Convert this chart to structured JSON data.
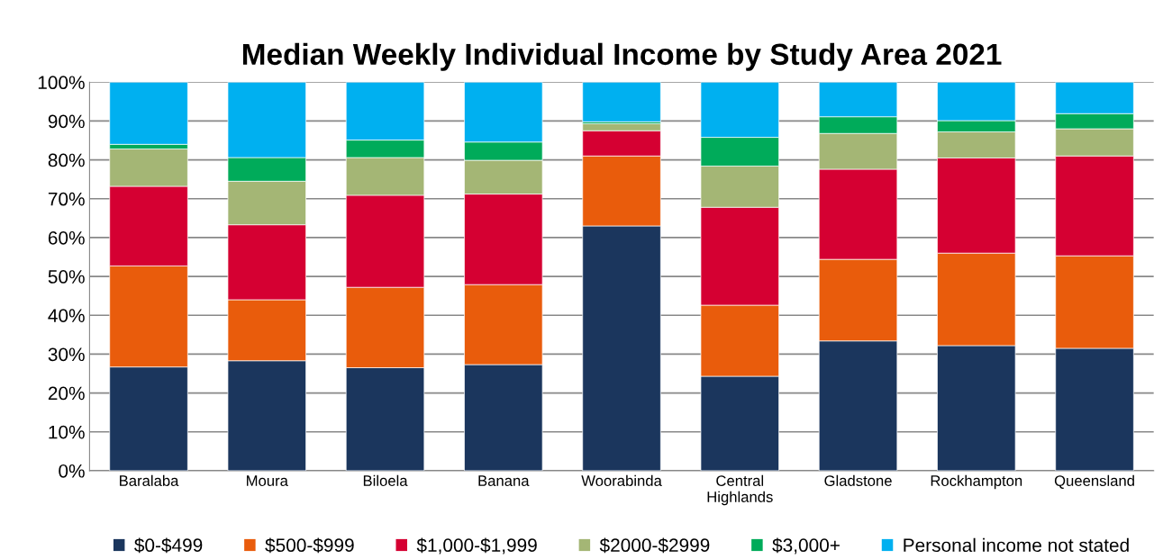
{
  "chart_data": {
    "type": "bar",
    "title": "Median Weekly Individual Income by Study Area 2021",
    "stacked": true,
    "categories": [
      "Baralaba",
      "Moura",
      "Biloela",
      "Banana",
      "Woorabinda",
      "Central\nHighlands",
      "Gladstone",
      "Rockhampton",
      "Queensland"
    ],
    "series": [
      {
        "name": "$0-$499",
        "color": "#1b365d",
        "values": [
          26.7,
          28.3,
          26.5,
          27.3,
          63.0,
          24.3,
          33.4,
          32.2,
          31.5
        ]
      },
      {
        "name": "$500-$999",
        "color": "#e95c0c",
        "values": [
          26.0,
          15.7,
          20.7,
          20.6,
          18.0,
          18.3,
          21.0,
          23.8,
          23.8
        ]
      },
      {
        "name": "$1,000-$1,999",
        "color": "#d50032",
        "values": [
          20.5,
          19.3,
          23.7,
          23.3,
          6.5,
          25.2,
          23.2,
          24.5,
          25.7
        ]
      },
      {
        "name": "$2000-$2999",
        "color": "#a4b675",
        "values": [
          9.6,
          11.2,
          9.7,
          8.7,
          1.8,
          10.6,
          9.2,
          6.7,
          7.0
        ]
      },
      {
        "name": "$3,000+",
        "color": "#00ab5a",
        "values": [
          1.2,
          6.1,
          4.5,
          4.7,
          0.5,
          7.4,
          4.3,
          2.9,
          3.9
        ]
      },
      {
        "name": "Personal income not stated",
        "color": "#00b0f0",
        "values": [
          16.0,
          19.4,
          14.9,
          15.4,
          10.2,
          14.2,
          8.9,
          9.9,
          8.1
        ]
      }
    ],
    "ylim": [
      0,
      100
    ],
    "yticks": [
      {
        "value": 0,
        "label": "0%"
      },
      {
        "value": 10,
        "label": "10%"
      },
      {
        "value": 20,
        "label": "20%"
      },
      {
        "value": 30,
        "label": "30%"
      },
      {
        "value": 40,
        "label": "40%"
      },
      {
        "value": 50,
        "label": "50%"
      },
      {
        "value": 60,
        "label": "60%"
      },
      {
        "value": 70,
        "label": "70%"
      },
      {
        "value": 80,
        "label": "80%"
      },
      {
        "value": 90,
        "label": "90%"
      },
      {
        "value": 100,
        "label": "100%"
      }
    ],
    "grid": "y",
    "legend": "bottom"
  }
}
